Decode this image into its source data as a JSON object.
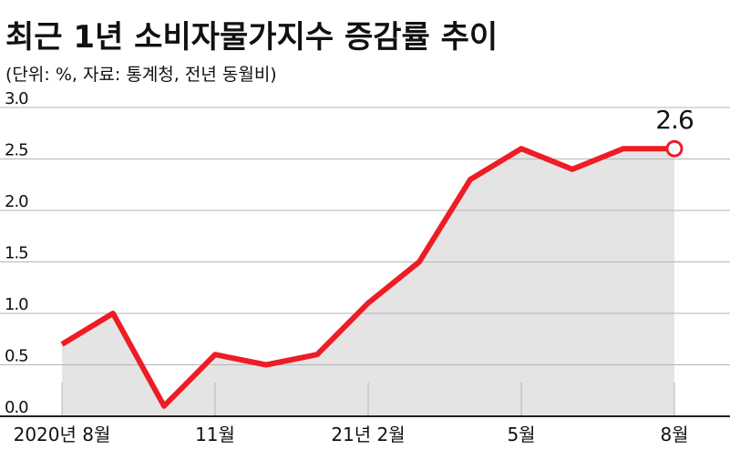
{
  "chart_data": {
    "type": "line",
    "title": "최근 1년 소비자물가지수 증감률 추이",
    "subtitle": "(단위: %, 자료: 통계청, 전년 동월비)",
    "categories": [
      "2020년 8월",
      null,
      null,
      "11월",
      null,
      null,
      "21년 2월",
      null,
      null,
      "5월",
      null,
      null,
      "8월"
    ],
    "series": [
      {
        "color": "#ee1c25",
        "fill": "#e4e4e4",
        "values": [
          0.7,
          1.0,
          0.1,
          0.6,
          0.5,
          0.6,
          1.1,
          1.5,
          2.3,
          2.6,
          2.4,
          2.6,
          2.6
        ]
      }
    ],
    "ylim": [
      0,
      3
    ],
    "yticks": [
      {
        "value": 0,
        "label": "0.0"
      },
      0.5,
      {
        "value": 1,
        "label": "1.0"
      },
      1.5,
      {
        "value": 2,
        "label": "2.0"
      },
      2.5,
      {
        "value": 3,
        "label": "3.0"
      }
    ],
    "grid": true
  }
}
